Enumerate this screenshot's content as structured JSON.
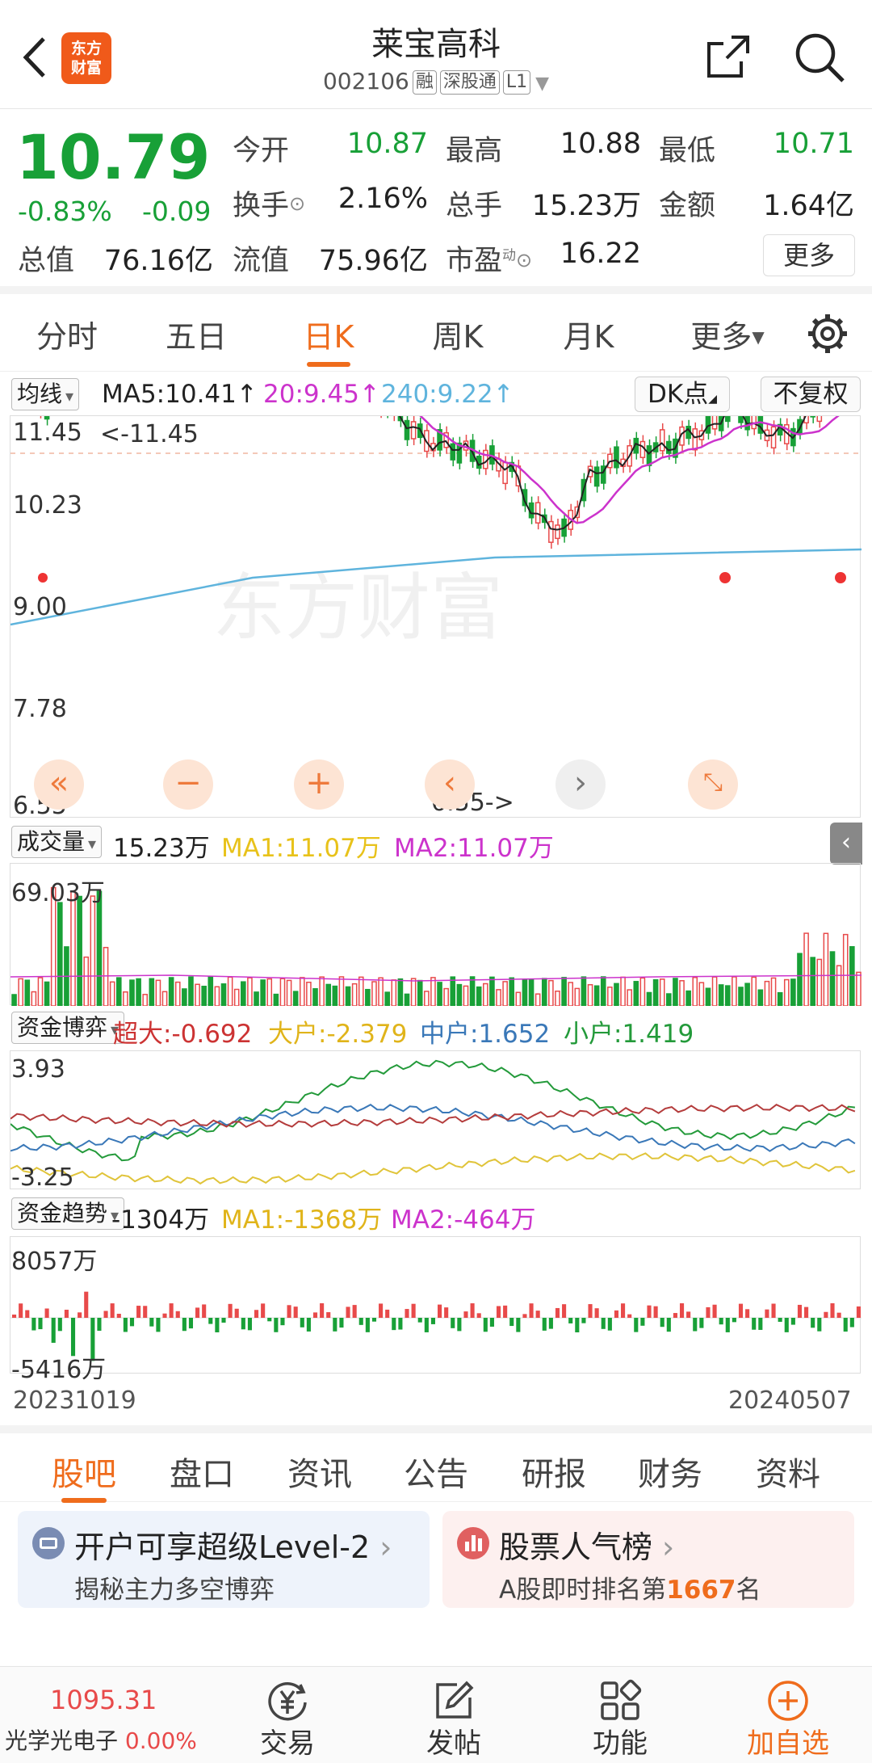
{
  "header": {
    "title": "莱宝高科",
    "code": "002106",
    "tags": [
      "融",
      "深股通",
      "L1"
    ],
    "logo_text": [
      "东方",
      "财富"
    ]
  },
  "quote": {
    "price": "10.79",
    "change_pct": "-0.83%",
    "change": "-0.09",
    "fields": [
      {
        "label": "今开",
        "value": "10.87",
        "color": "#18a037"
      },
      {
        "label": "最高",
        "value": "10.88",
        "color": "#222222"
      },
      {
        "label": "最低",
        "value": "10.71",
        "color": "#18a037"
      },
      {
        "label": "换手",
        "value": "2.16%",
        "color": "#222222"
      },
      {
        "label": "总手",
        "value": "15.23万",
        "color": "#222222"
      },
      {
        "label": "金额",
        "value": "1.64亿",
        "color": "#222222"
      },
      {
        "label": "总值",
        "value": "76.16亿",
        "color": "#222222"
      },
      {
        "label": "流值",
        "value": "75.96亿",
        "color": "#222222"
      },
      {
        "label": "市盈",
        "value": "16.22",
        "color": "#222222"
      }
    ],
    "pe_superscript": "动",
    "more_label": "更多"
  },
  "tabs": [
    "分时",
    "五日",
    "日K",
    "周K",
    "月K",
    "更多"
  ],
  "active_tab": "日K",
  "ma_row": {
    "dropdown": "均线",
    "ma5": "MA5:10.41",
    "ma20": "20:9.45",
    "ma240": "240:9.22",
    "dk_label": "DK点",
    "fq_label": "不复权"
  },
  "kline": {
    "y_labels": [
      "11.45",
      "10.23",
      "9.00",
      "7.78",
      "6.55"
    ],
    "high_marker": "<-11.45",
    "low_marker": "6.55->",
    "watermark": "东方财富"
  },
  "volume_row": {
    "dropdown": "成交量",
    "value": "15.23万",
    "ma1": "MA1:11.07万",
    "ma2": "MA2:11.07万",
    "max_label": "69.03万"
  },
  "fund_game_row": {
    "dropdown": "资金博弈",
    "super": "超大:-0.692",
    "large": "大户:-2.379",
    "mid": "中户:1.652",
    "small": "小户:1.419",
    "top_label": "3.93",
    "bottom_label": "-3.25"
  },
  "fund_trend_row": {
    "dropdown": "资金趋势",
    "value": "-1304万",
    "ma1": "MA1:-1368万",
    "ma2": "MA2:-464万",
    "top_label": "8057万",
    "bottom_label": "-5416万"
  },
  "date_range": {
    "start": "20231019",
    "end": "20240507"
  },
  "news_tabs": [
    "股吧",
    "盘口",
    "资讯",
    "公告",
    "研报",
    "财务",
    "资料"
  ],
  "cards": [
    {
      "title": "开户可享超级Level-2",
      "subtitle": "揭秘主力多空博弈"
    },
    {
      "title": "股票人气榜",
      "subtitle_prefix": "A股即时排名第",
      "rank": "1667",
      "subtitle_suffix": "名"
    }
  ],
  "bottom_bar": {
    "index_value": "1095.31",
    "index_name": "光学光电子",
    "index_change": "0.00%",
    "items": [
      "交易",
      "发帖",
      "功能",
      "加自选"
    ]
  },
  "colors": {
    "up": "#e84a4a",
    "down": "#18a037",
    "accent": "#ef6c1c",
    "ma5": "#222222",
    "ma20": "#cc33cc",
    "ma240": "#5fb4dd",
    "ma1": "#e8c21a"
  }
}
